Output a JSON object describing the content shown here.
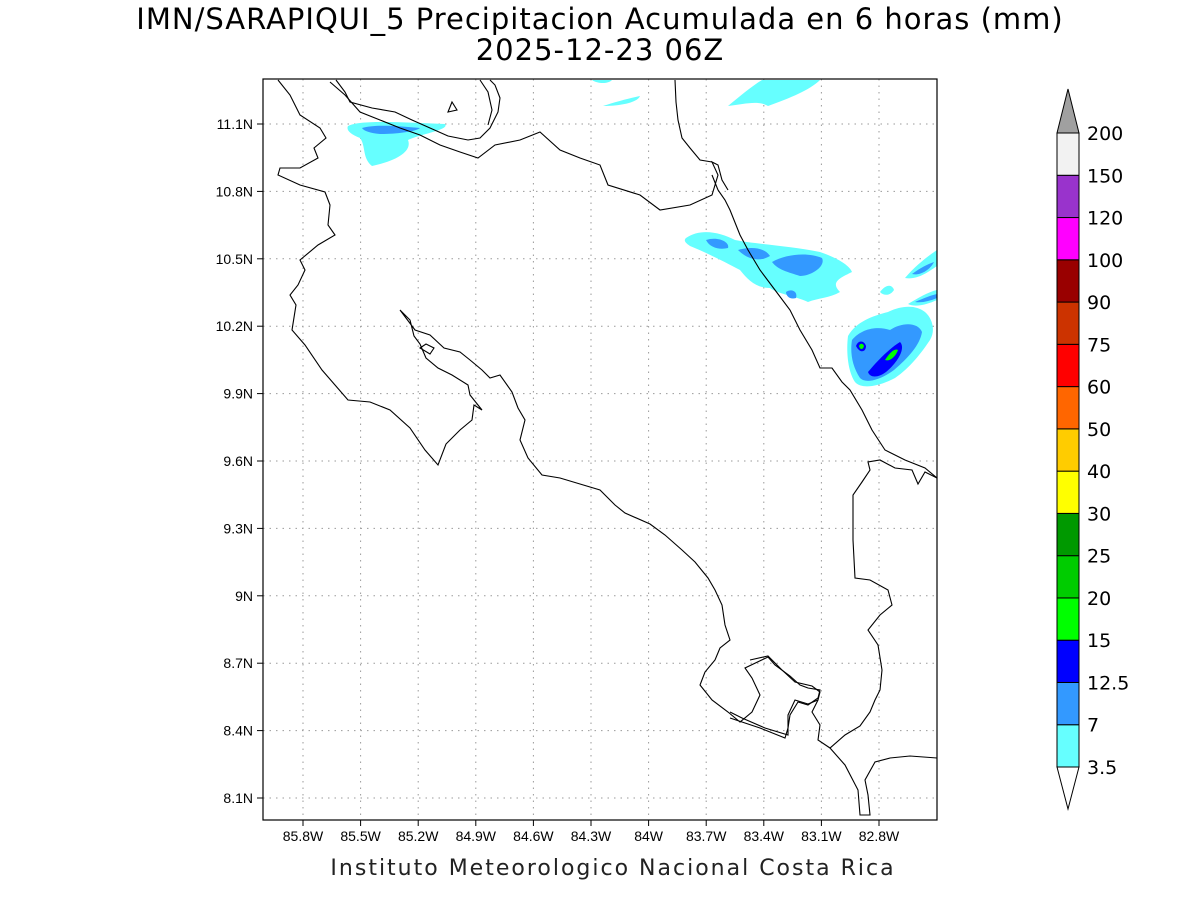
{
  "title": {
    "line1": "IMN/SARAPIQUI_5 Precipitacion Acumulada en 6 horas (mm)",
    "line2": "2025-12-23 06Z"
  },
  "footer": "Instituto Meteorologico Nacional Costa Rica",
  "map": {
    "lat_range": [
      8.0,
      11.3
    ],
    "lon_range": [
      -85.95,
      -82.55
    ],
    "y_ticks": [
      "11.1N",
      "10.8N",
      "10.5N",
      "10.2N",
      "9.9N",
      "9.6N",
      "9.3N",
      "9N",
      "8.7N",
      "8.4N",
      "8.1N"
    ],
    "x_ticks": [
      "85.8W",
      "85.5W",
      "85.2W",
      "84.9W",
      "84.6W",
      "84.3W",
      "84W",
      "83.7W",
      "83.4W",
      "83.1W",
      "82.8W"
    ],
    "grid": true
  },
  "colorbar": {
    "labels": [
      "3.5",
      "7",
      "12.5",
      "15",
      "20",
      "25",
      "30",
      "40",
      "50",
      "60",
      "75",
      "90",
      "100",
      "120",
      "150",
      "200"
    ],
    "colors": [
      "#66ffff",
      "#3399ff",
      "#0000ff",
      "#00ff00",
      "#00cc00",
      "#009900",
      "#ffff00",
      "#ffcc00",
      "#ff6600",
      "#ff0000",
      "#cc3300",
      "#990000",
      "#ff00ff",
      "#9933cc",
      "#f2f2f2"
    ],
    "over_color": "#a0a0a0",
    "under_color": "#ffffff"
  }
}
